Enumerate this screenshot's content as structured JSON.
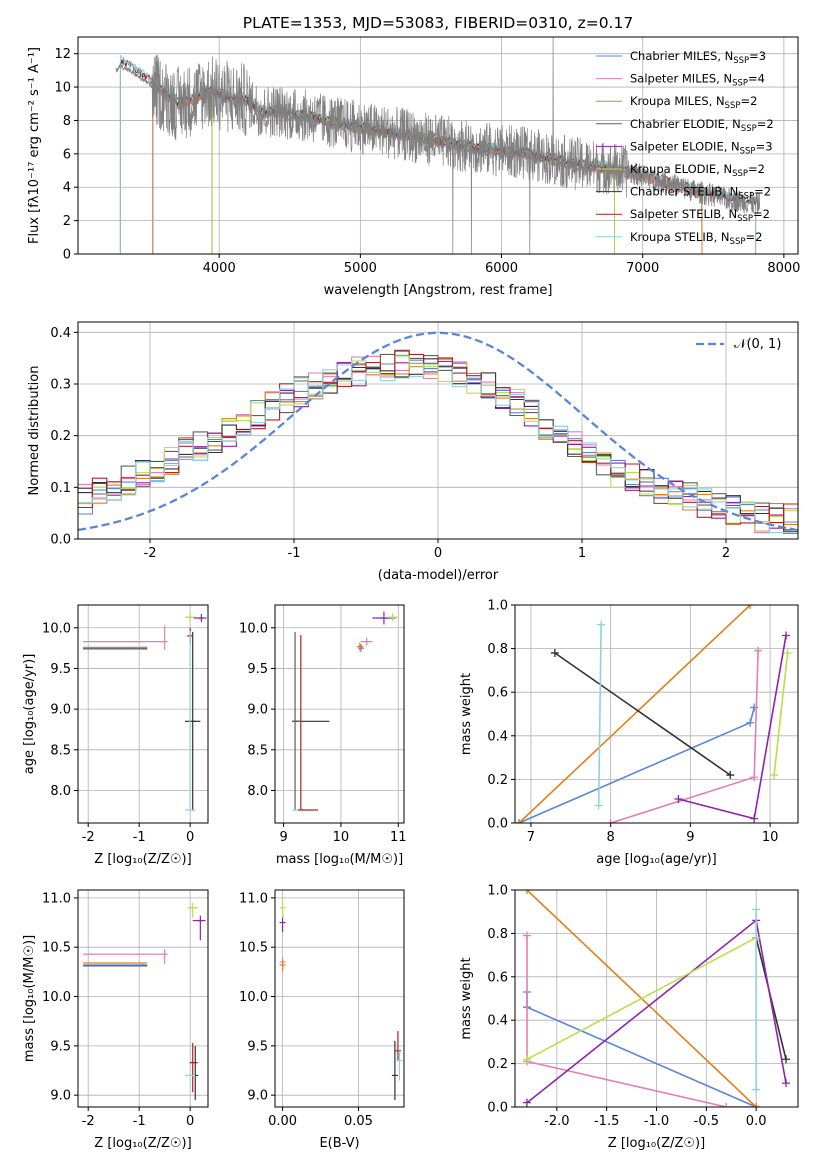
{
  "figure": {
    "title": "PLATE=1353, MJD=53083, FIBERID=0310, z=0.17"
  },
  "colors": {
    "chabrier_miles": "#5b86d6",
    "salpeter_miles": "#e07fb8",
    "kroupa_miles": "#e0801a",
    "chabrier_elodie": "#606060",
    "salpeter_elodie": "#8e24aa",
    "kroupa_elodie": "#b8e04a",
    "chabrier_stelib": "#333333",
    "salpeter_stelib": "#b22222",
    "kroupa_stelib": "#8fd3d8",
    "data": "#808080",
    "grid": "#b0b0b0",
    "gauss": "#5b86d6"
  },
  "chart_data": [
    {
      "id": "spectrum",
      "type": "line",
      "title": "PLATE=1353, MJD=53083, FIBERID=0310, z=0.17",
      "xlabel": "wavelength [Angstrom, rest frame]",
      "ylabel": "Flux [fλ10⁻¹⁷ erg cm⁻² s⁻¹ A⁻¹]",
      "xlim": [
        3000,
        8100
      ],
      "ylim": [
        0,
        13
      ],
      "xticks": [
        4000,
        5000,
        6000,
        7000,
        8000
      ],
      "yticks": [
        0,
        2,
        4,
        6,
        8,
        10,
        12
      ],
      "grid": true,
      "legend_position": "top-right",
      "data_envelope": {
        "x": [
          3270,
          3300,
          3400,
          3500,
          3600,
          3700,
          3800,
          3900,
          4000,
          4100,
          4200,
          4300,
          4400,
          4500,
          4600,
          4800,
          5000,
          5200,
          5400,
          5600,
          5800,
          6000,
          6200,
          6400,
          6600,
          6800,
          7000,
          7200,
          7400,
          7600,
          7800,
          7830
        ],
        "y": [
          11.0,
          11.3,
          10.8,
          10.2,
          9.5,
          9.0,
          9.2,
          9.7,
          9.6,
          9.3,
          9.2,
          8.5,
          8.6,
          8.4,
          8.3,
          7.9,
          7.6,
          7.3,
          7.0,
          6.7,
          6.4,
          6.2,
          6.0,
          5.6,
          5.3,
          5.1,
          4.7,
          4.2,
          3.7,
          3.3,
          3.0,
          3.0
        ]
      },
      "series": [
        {
          "name": "Chabrier MILES, N_SSP=3",
          "label_main": "Chabrier MILES, N",
          "label_sub": "SSP",
          "label_end": "=3",
          "color_key": "chabrier_miles",
          "range": [
            3530,
            7420
          ]
        },
        {
          "name": "Salpeter MILES, N_SSP=4",
          "label_main": "Salpeter MILES, N",
          "label_sub": "SSP",
          "label_end": "=4",
          "color_key": "salpeter_miles",
          "range": [
            3530,
            7420
          ]
        },
        {
          "name": "Kroupa MILES, N_SSP=2",
          "label_main": "Kroupa MILES, N",
          "label_sub": "SSP",
          "label_end": "=2",
          "color_key": "kroupa_miles",
          "range": [
            3530,
            7420
          ]
        },
        {
          "name": "Chabrier ELODIE, N_SSP=2",
          "label_main": "Chabrier ELODIE, N",
          "label_sub": "SSP",
          "label_end": "=2",
          "color_key": "chabrier_elodie",
          "range": [
            3950,
            6800
          ]
        },
        {
          "name": "Salpeter ELODIE, N_SSP=3",
          "label_main": "Salpeter ELODIE, N",
          "label_sub": "SSP",
          "label_end": "=3",
          "color_key": "salpeter_elodie",
          "range": [
            3950,
            6800
          ]
        },
        {
          "name": "Kroupa ELODIE, N_SSP=2",
          "label_main": "Kroupa ELODIE, N",
          "label_sub": "SSP",
          "label_end": "=2",
          "color_key": "kroupa_elodie",
          "range": [
            3950,
            6800
          ]
        },
        {
          "name": "Chabrier STELIB, N_SSP=2",
          "label_main": "Chabrier STELIB, N",
          "label_sub": "SSP",
          "label_end": "=2",
          "color_key": "chabrier_stelib",
          "range": [
            3300,
            7800
          ]
        },
        {
          "name": "Salpeter STELIB, N_SSP=2",
          "label_main": "Salpeter STELIB, N",
          "label_sub": "SSP",
          "label_end": "=2",
          "color_key": "salpeter_stelib",
          "range": [
            3300,
            7800
          ]
        },
        {
          "name": "Kroupa STELIB, N_SSP=2",
          "label_main": "Kroupa STELIB, N",
          "label_sub": "SSP",
          "label_end": "=2",
          "color_key": "kroupa_stelib",
          "range": [
            3300,
            7800
          ]
        }
      ]
    },
    {
      "id": "residuals",
      "type": "line",
      "xlabel": "(data-model)/error",
      "ylabel": "Normed distribution",
      "xlim": [
        -2.5,
        2.5
      ],
      "ylim": [
        0,
        0.42
      ],
      "xticks": [
        -2,
        -1,
        0,
        1,
        2
      ],
      "yticks": [
        0.0,
        0.1,
        0.2,
        0.3,
        0.4
      ],
      "grid": true,
      "legend_position": "top-right",
      "legend": "𝒩(0, 1)",
      "gaussian": {
        "mean": 0,
        "sigma": 1
      },
      "hist_envelope": {
        "x": [
          -2.5,
          -2.25,
          -2.0,
          -1.75,
          -1.5,
          -1.25,
          -1.0,
          -0.75,
          -0.5,
          -0.25,
          0.0,
          0.25,
          0.5,
          0.75,
          1.0,
          1.25,
          1.5,
          1.75,
          2.0,
          2.25,
          2.5
        ],
        "y": [
          0.07,
          0.1,
          0.13,
          0.17,
          0.2,
          0.24,
          0.28,
          0.31,
          0.33,
          0.34,
          0.34,
          0.31,
          0.27,
          0.22,
          0.17,
          0.13,
          0.1,
          0.08,
          0.06,
          0.04,
          0.04
        ]
      },
      "bin_width": 0.1
    },
    {
      "id": "age_vs_Z",
      "type": "scatter",
      "xlabel": "Z [log₁₀(Z/Z☉)]",
      "ylabel": "age  [log₁₀(age/yr)]",
      "xlim": [
        -2.2,
        0.35
      ],
      "ylim": [
        7.6,
        10.28
      ],
      "xticks": [
        -2,
        -1,
        0
      ],
      "yticks": [
        8.0,
        8.5,
        9.0,
        9.5,
        10.0
      ],
      "grid": true,
      "points": [
        {
          "color_key": "salpeter_miles",
          "x": -0.5,
          "xerr": [
            1.6,
            0
          ],
          "y": 9.83,
          "yerr": [
            0.1,
            0.2
          ]
        },
        {
          "color_key": "chabrier_miles",
          "x": -0.9,
          "xerr": [
            1.2,
            0
          ],
          "y": 9.75,
          "yerr": [
            0,
            0
          ]
        },
        {
          "color_key": "kroupa_miles",
          "x": -0.9,
          "xerr": [
            1.2,
            0
          ],
          "y": 9.76,
          "yerr": [
            0,
            0
          ]
        },
        {
          "color_key": "chabrier_elodie",
          "x": -0.9,
          "xerr": [
            1.2,
            0
          ],
          "y": 9.74,
          "yerr": [
            0,
            0
          ]
        },
        {
          "color_key": "kroupa_elodie",
          "x": 0.0,
          "xerr": [
            0.1,
            0.1
          ],
          "y": 10.13,
          "yerr": [
            0.05,
            0.05
          ]
        },
        {
          "color_key": "salpeter_elodie",
          "x": 0.22,
          "xerr": [
            0.15,
            0.1
          ],
          "y": 10.12,
          "yerr": [
            0.05,
            0.05
          ]
        },
        {
          "color_key": "chabrier_stelib",
          "x": 0.05,
          "xerr": [
            0.15,
            0.15
          ],
          "y": 8.85,
          "yerr": [
            1.1,
            1.1
          ]
        },
        {
          "color_key": "salpeter_stelib",
          "x": 0.0,
          "xerr": [
            0.05,
            0.05
          ],
          "y": 9.9,
          "yerr": [
            0.1,
            0.1
          ]
        },
        {
          "color_key": "kroupa_stelib",
          "x": 0.0,
          "xerr": [
            0.1,
            0.1
          ],
          "y": 7.76,
          "yerr": [
            0.0,
            2.2
          ]
        }
      ]
    },
    {
      "id": "age_vs_mass",
      "type": "scatter",
      "xlabel": "mass [log₁₀(M/M☉)]",
      "xlim": [
        8.85,
        11.1
      ],
      "ylim": [
        7.6,
        10.28
      ],
      "xticks": [
        9,
        10,
        11
      ],
      "yticks": [
        8.0,
        8.5,
        9.0,
        9.5,
        10.0
      ],
      "grid": true,
      "points": [
        {
          "color_key": "chabrier_stelib",
          "x": 9.2,
          "xerr": [
            0.0,
            0.6
          ],
          "y": 8.85,
          "yerr": [
            0,
            0
          ]
        },
        {
          "color_key": "chabrier_elodie",
          "x": 9.2,
          "xerr": [
            0.0,
            0.1
          ],
          "y": 8.85,
          "yerr": [
            1.1,
            1.1
          ]
        },
        {
          "color_key": "salpeter_stelib",
          "x": 9.3,
          "xerr": [
            0.0,
            0.3
          ],
          "y": 7.76,
          "yerr": [
            0.0,
            2.15
          ]
        },
        {
          "color_key": "kroupa_stelib",
          "x": 9.2,
          "xerr": [
            0,
            0
          ],
          "y": 7.76,
          "yerr": [
            0,
            0
          ]
        },
        {
          "color_key": "chabrier_miles",
          "x": 10.35,
          "xerr": [
            0.05,
            0.05
          ],
          "y": 9.75,
          "yerr": [
            0.05,
            0.05
          ]
        },
        {
          "color_key": "salpeter_miles",
          "x": 10.45,
          "xerr": [
            0.1,
            0.1
          ],
          "y": 9.83,
          "yerr": [
            0.05,
            0.05
          ]
        },
        {
          "color_key": "kroupa_miles",
          "x": 10.33,
          "xerr": [
            0.05,
            0.05
          ],
          "y": 9.77,
          "yerr": [
            0.05,
            0.05
          ]
        },
        {
          "color_key": "salpeter_elodie",
          "x": 10.75,
          "xerr": [
            0.2,
            0.2
          ],
          "y": 10.12,
          "yerr": [
            0.08,
            0.08
          ]
        },
        {
          "color_key": "kroupa_elodie",
          "x": 10.9,
          "xerr": [
            0.1,
            0.1
          ],
          "y": 10.13,
          "yerr": [
            0.05,
            0.05
          ]
        }
      ]
    },
    {
      "id": "mass_weight_vs_age",
      "type": "line",
      "xlabel": "age  [log₁₀(age/yr)]",
      "ylabel": "mass weight",
      "xlim": [
        6.8,
        10.35
      ],
      "ylim": [
        0,
        1.0
      ],
      "xticks": [
        7,
        8,
        9,
        10
      ],
      "yticks": [
        0.0,
        0.2,
        0.4,
        0.6,
        0.8,
        1.0
      ],
      "grid": true,
      "series": [
        {
          "color_key": "chabrier_miles",
          "x": [
            6.85,
            9.75,
            9.8
          ],
          "y": [
            0.0,
            0.46,
            0.53
          ]
        },
        {
          "color_key": "salpeter_miles",
          "x": [
            8.0,
            9.8,
            9.85
          ],
          "y": [
            0.0,
            0.21,
            0.79
          ]
        },
        {
          "color_key": "kroupa_miles",
          "x": [
            6.85,
            9.75
          ],
          "y": [
            0.0,
            1.0
          ]
        },
        {
          "color_key": "chabrier_stelib",
          "x": [
            7.3,
            9.5
          ],
          "y": [
            0.78,
            0.22
          ]
        },
        {
          "color_key": "salpeter_elodie",
          "x": [
            8.85,
            9.8,
            10.2
          ],
          "y": [
            0.11,
            0.02,
            0.86
          ]
        },
        {
          "color_key": "kroupa_elodie",
          "x": [
            10.05,
            10.22
          ],
          "y": [
            0.22,
            0.78
          ]
        },
        {
          "color_key": "kroupa_stelib",
          "x": [
            7.85,
            7.88
          ],
          "y": [
            0.08,
            0.91
          ]
        }
      ]
    },
    {
      "id": "mass_vs_Z",
      "type": "scatter",
      "xlabel": "Z [log₁₀(Z/Z☉)]",
      "ylabel": "mass [log₁₀(M/M☉)]",
      "xlim": [
        -2.2,
        0.35
      ],
      "ylim": [
        8.88,
        11.08
      ],
      "xticks": [
        -2,
        -1,
        0
      ],
      "yticks": [
        9.0,
        9.5,
        10.0,
        10.5,
        11.0
      ],
      "grid": true,
      "points": [
        {
          "color_key": "salpeter_miles",
          "x": -0.5,
          "xerr": [
            1.6,
            0
          ],
          "y": 10.43,
          "yerr": [
            0.1,
            0.05
          ]
        },
        {
          "color_key": "kroupa_miles",
          "x": -0.9,
          "xerr": [
            1.2,
            0
          ],
          "y": 10.34,
          "yerr": [
            0,
            0
          ]
        },
        {
          "color_key": "chabrier_miles",
          "x": -0.9,
          "xerr": [
            1.2,
            0
          ],
          "y": 10.32,
          "yerr": [
            0,
            0
          ]
        },
        {
          "color_key": "chabrier_elodie",
          "x": -0.9,
          "xerr": [
            1.2,
            0
          ],
          "y": 10.31,
          "yerr": [
            0,
            0
          ]
        },
        {
          "color_key": "kroupa_elodie",
          "x": 0.05,
          "xerr": [
            0.1,
            0.1
          ],
          "y": 10.9,
          "yerr": [
            0.1,
            0.05
          ]
        },
        {
          "color_key": "salpeter_elodie",
          "x": 0.2,
          "xerr": [
            0.15,
            0.1
          ],
          "y": 10.77,
          "yerr": [
            0.2,
            0.05
          ]
        },
        {
          "color_key": "salpeter_stelib",
          "x": 0.05,
          "xerr": [
            0.05,
            0.1
          ],
          "y": 9.33,
          "yerr": [
            0.3,
            0.2
          ]
        },
        {
          "color_key": "chabrier_stelib",
          "x": 0.1,
          "xerr": [
            0.0,
            0.0
          ],
          "y": 9.2,
          "yerr": [
            0.25,
            0.3
          ]
        },
        {
          "color_key": "kroupa_stelib",
          "x": 0.0,
          "xerr": [
            0.1,
            0.1
          ],
          "y": 9.2,
          "yerr": [
            0,
            0
          ]
        }
      ]
    },
    {
      "id": "mass_vs_ebv",
      "type": "scatter",
      "xlabel": "E(B-V)",
      "xlim": [
        -0.005,
        0.08
      ],
      "ylim": [
        8.88,
        11.08
      ],
      "xticks": [
        0.0,
        0.05
      ],
      "yticks": [
        9.0,
        9.5,
        10.0,
        10.5,
        11.0
      ],
      "grid": true,
      "points": [
        {
          "color_key": "salpeter_elodie",
          "x": 0.0,
          "xerr": [
            0,
            0
          ],
          "y": 10.75,
          "yerr": [
            0.1,
            0.1
          ]
        },
        {
          "color_key": "kroupa_elodie",
          "x": 0.0,
          "xerr": [
            0,
            0
          ],
          "y": 10.9,
          "yerr": [
            0.1,
            0.1
          ]
        },
        {
          "color_key": "salpeter_miles",
          "x": 0.0,
          "xerr": [
            0,
            0
          ],
          "y": 10.35,
          "yerr": [
            0.1,
            0.05
          ]
        },
        {
          "color_key": "kroupa_miles",
          "x": 0.0,
          "xerr": [
            0,
            0
          ],
          "y": 10.32,
          "yerr": [
            0.05,
            0.05
          ]
        },
        {
          "color_key": "chabrier_stelib",
          "x": 0.074,
          "xerr": [
            0,
            0
          ],
          "y": 9.2,
          "yerr": [
            0.25,
            0.35
          ]
        },
        {
          "color_key": "salpeter_stelib",
          "x": 0.076,
          "xerr": [
            0,
            0
          ],
          "y": 9.45,
          "yerr": [
            0.1,
            0.2
          ]
        },
        {
          "color_key": "kroupa_stelib",
          "x": 0.077,
          "xerr": [
            0,
            0
          ],
          "y": 9.35,
          "yerr": [
            0.2,
            0.1
          ]
        }
      ]
    },
    {
      "id": "mass_weight_vs_Z",
      "type": "line",
      "xlabel": "Z [log₁₀(Z/Z☉)]",
      "ylabel": "mass weight",
      "xlim": [
        -2.42,
        0.42
      ],
      "ylim": [
        0,
        1.0
      ],
      "xticks": [
        -2.0,
        -1.5,
        -1.0,
        -0.5,
        0.0
      ],
      "yticks": [
        0.0,
        0.2,
        0.4,
        0.6,
        0.8,
        1.0
      ],
      "grid": true,
      "series": [
        {
          "color_key": "chabrier_miles",
          "x": [
            -2.3,
            -2.3,
            0.0
          ],
          "y": [
            0.53,
            0.46,
            0.0
          ]
        },
        {
          "color_key": "salpeter_miles",
          "x": [
            -2.3,
            -2.3,
            -0.3,
            0.0
          ],
          "y": [
            0.79,
            0.21,
            0.0,
            0.0
          ]
        },
        {
          "color_key": "kroupa_miles",
          "x": [
            -2.3,
            0.0
          ],
          "y": [
            1.0,
            0.0
          ]
        },
        {
          "color_key": "chabrier_stelib",
          "x": [
            0.0,
            0.3
          ],
          "y": [
            0.78,
            0.22
          ]
        },
        {
          "color_key": "salpeter_elodie",
          "x": [
            -2.3,
            0.0,
            0.3
          ],
          "y": [
            0.02,
            0.86,
            0.11
          ]
        },
        {
          "color_key": "kroupa_elodie",
          "x": [
            -2.3,
            0.0
          ],
          "y": [
            0.22,
            0.78
          ]
        },
        {
          "color_key": "kroupa_stelib",
          "x": [
            0.0,
            0.0
          ],
          "y": [
            0.08,
            0.91
          ]
        }
      ]
    }
  ]
}
